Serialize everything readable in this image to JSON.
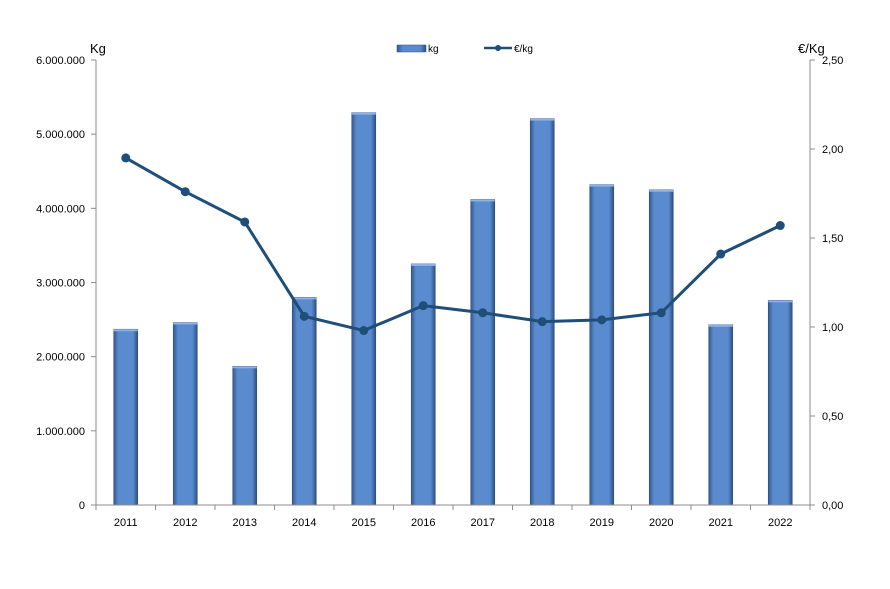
{
  "chart_data": {
    "type": "bar+line",
    "title": "",
    "categories": [
      "2011",
      "2012",
      "2013",
      "2014",
      "2015",
      "2016",
      "2017",
      "2018",
      "2019",
      "2020",
      "2021",
      "2022"
    ],
    "series": [
      {
        "name": "kg",
        "type": "bar",
        "axis": "left",
        "color": "#5585C8",
        "values": [
          2370000,
          2460000,
          1870000,
          2800000,
          5290000,
          3250000,
          4120000,
          5210000,
          4320000,
          4250000,
          2430000,
          2760000
        ]
      },
      {
        "name": "€/kg",
        "type": "line",
        "axis": "right",
        "color": "#1F4E79",
        "values": [
          1.95,
          1.76,
          1.59,
          1.06,
          0.98,
          1.12,
          1.08,
          1.03,
          1.04,
          1.08,
          1.41,
          1.57
        ]
      }
    ],
    "left_axis": {
      "label": "Kg",
      "ylim": [
        0,
        6000000
      ],
      "ticks": [
        0,
        1000000,
        2000000,
        3000000,
        4000000,
        5000000,
        6000000
      ],
      "tick_labels": [
        "0",
        "1.000.000",
        "2.000.000",
        "3.000.000",
        "4.000.000",
        "5.000.000",
        "6.000.000"
      ]
    },
    "right_axis": {
      "label": "€/Kg",
      "ylim": [
        0,
        2.5
      ],
      "ticks": [
        0,
        0.5,
        1,
        1.5,
        2,
        2.5
      ],
      "tick_labels": [
        "0,00",
        "0,50",
        "1,00",
        "1,50",
        "2,00",
        "2,50"
      ]
    },
    "grid": false,
    "legend_position": "top-center"
  }
}
